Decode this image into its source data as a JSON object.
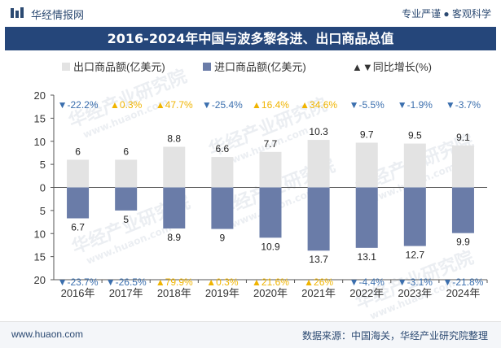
{
  "header": {
    "site_name": "华经情报网",
    "tagline": "专业严谨 ● 客观科学"
  },
  "watermark": {
    "text": "华经产业研究院",
    "url": "www.huaon.com"
  },
  "footer": {
    "url": "www.huaon.com",
    "source": "数据来源：中国海关，华经产业研究院整理"
  },
  "colors": {
    "export_bar": "#e3e3e3",
    "import_bar": "#6a7ca8",
    "up": "#f0b400",
    "down": "#3b6fae",
    "title_bg": "#25467a"
  },
  "chart_data": {
    "type": "bar",
    "title": "2016-2024年中国与波多黎各进、出口商品总值",
    "categories": [
      "2016年",
      "2017年",
      "2018年",
      "2019年",
      "2020年",
      "2021年",
      "2022年",
      "2023年",
      "2024年"
    ],
    "legend": [
      "出口商品额(亿美元)",
      "进口商品额(亿美元)",
      "▲▼同比增长(%)"
    ],
    "series": [
      {
        "name": "出口商品额(亿美元)",
        "values": [
          6,
          6,
          8.8,
          6.6,
          7.7,
          10.3,
          9.7,
          9.5,
          9.1
        ]
      },
      {
        "name": "进口商品额(亿美元)",
        "values": [
          6.7,
          5,
          8.9,
          9,
          10.9,
          13.7,
          13.1,
          12.7,
          9.9
        ]
      }
    ],
    "export_growth": [
      "-22.2%",
      "0.3%",
      "47.7%",
      "-25.4%",
      "16.4%",
      "34.6%",
      "-5.5%",
      "-1.9%",
      "-3.7%"
    ],
    "import_growth": [
      "-23.7%",
      "-26.5%",
      "79.9%",
      "0.3%",
      "21.6%",
      "26%",
      "-4.4%",
      "-3.1%",
      "-21.8%"
    ],
    "y_ticks": [
      20,
      15,
      10,
      5,
      0,
      5,
      10,
      15,
      20
    ],
    "ylim": [
      -20,
      20
    ],
    "legend_position": "top"
  }
}
